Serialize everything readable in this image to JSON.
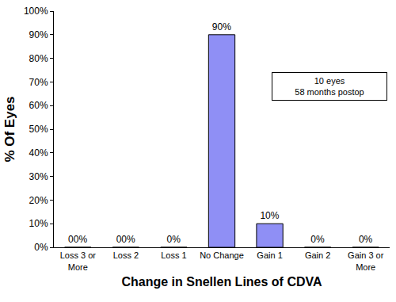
{
  "chart_data": {
    "type": "bar",
    "categories": [
      "Loss 3 or More",
      "Loss 2",
      "Loss 1",
      "No Change",
      "Gain 1",
      "Gain 2",
      "Gain 3 or More"
    ],
    "values": [
      0,
      0,
      0,
      90,
      10,
      0,
      0
    ],
    "value_labels": [
      "00%",
      "00%",
      "0%",
      "90%",
      "10%",
      "0%",
      "0%"
    ],
    "data_labels": true,
    "color": "#8f8ff5",
    "x_label": "Change in Snellen Lines of CDVA",
    "y_label": "% Of Eyes",
    "annotations": [
      {
        "text": [
          "10 eyes",
          "58 months postop"
        ]
      }
    ],
    "ylim": [
      0,
      100
    ],
    "yticks": [
      {
        "value": 0,
        "label": "0%"
      },
      {
        "value": 10,
        "label": "10%"
      },
      {
        "value": 20,
        "label": "20%"
      },
      {
        "value": 30,
        "label": "30%"
      },
      {
        "value": 40,
        "label": "40%"
      },
      {
        "value": 50,
        "label": "50%"
      },
      {
        "value": 60,
        "label": "60%"
      },
      {
        "value": 70,
        "label": "70%"
      },
      {
        "value": 80,
        "label": "80%"
      },
      {
        "value": 90,
        "label": "90%"
      },
      {
        "value": 100,
        "label": "100%"
      }
    ],
    "grid": false
  }
}
